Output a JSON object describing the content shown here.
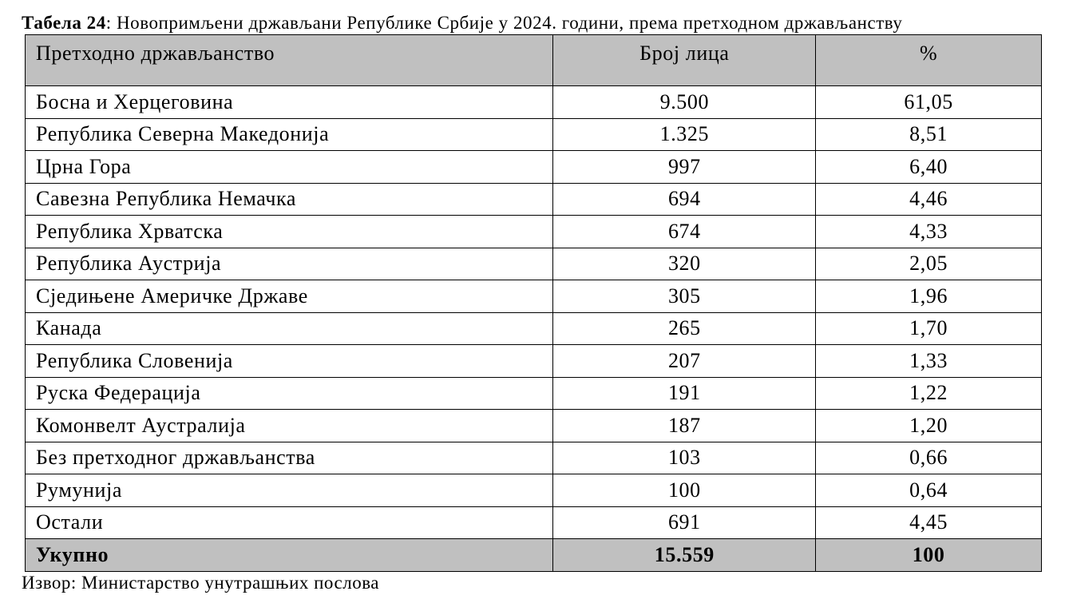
{
  "caption": {
    "label": "Табела 24",
    "text": ": Новопримљени држављани Републике Србије у 2024. години, према претходном држављанству"
  },
  "table": {
    "headers": [
      "Претходно држављанство",
      "Број лица",
      "%"
    ],
    "rows": [
      [
        "Босна и Херцеговина",
        "9.500",
        "61,05"
      ],
      [
        "Република Северна Македонија",
        "1.325",
        "8,51"
      ],
      [
        "Црна Гора",
        "997",
        "6,40"
      ],
      [
        "Савезна Република Немачка",
        "694",
        "4,46"
      ],
      [
        "Република Хрватска",
        "674",
        "4,33"
      ],
      [
        "Република Аустрија",
        "320",
        "2,05"
      ],
      [
        "Сједињене Америчке Државе",
        "305",
        "1,96"
      ],
      [
        "Канада",
        "265",
        "1,70"
      ],
      [
        "Република Словенија",
        "207",
        "1,33"
      ],
      [
        "Руска Федерација",
        "191",
        "1,22"
      ],
      [
        "Комонвелт Аустралија",
        "187",
        "1,20"
      ],
      [
        "Без претходног држављанства",
        "103",
        "0,66"
      ],
      [
        "Румунија",
        "100",
        "0,64"
      ],
      [
        "Остали",
        "691",
        "4,45"
      ]
    ],
    "total": [
      "Укупно",
      "15.559",
      "100"
    ]
  },
  "source": "Извор: Министарство унутрашњих послова",
  "colors": {
    "header_bg": "#c0c0c0",
    "total_bg": "#c0c0c0"
  }
}
